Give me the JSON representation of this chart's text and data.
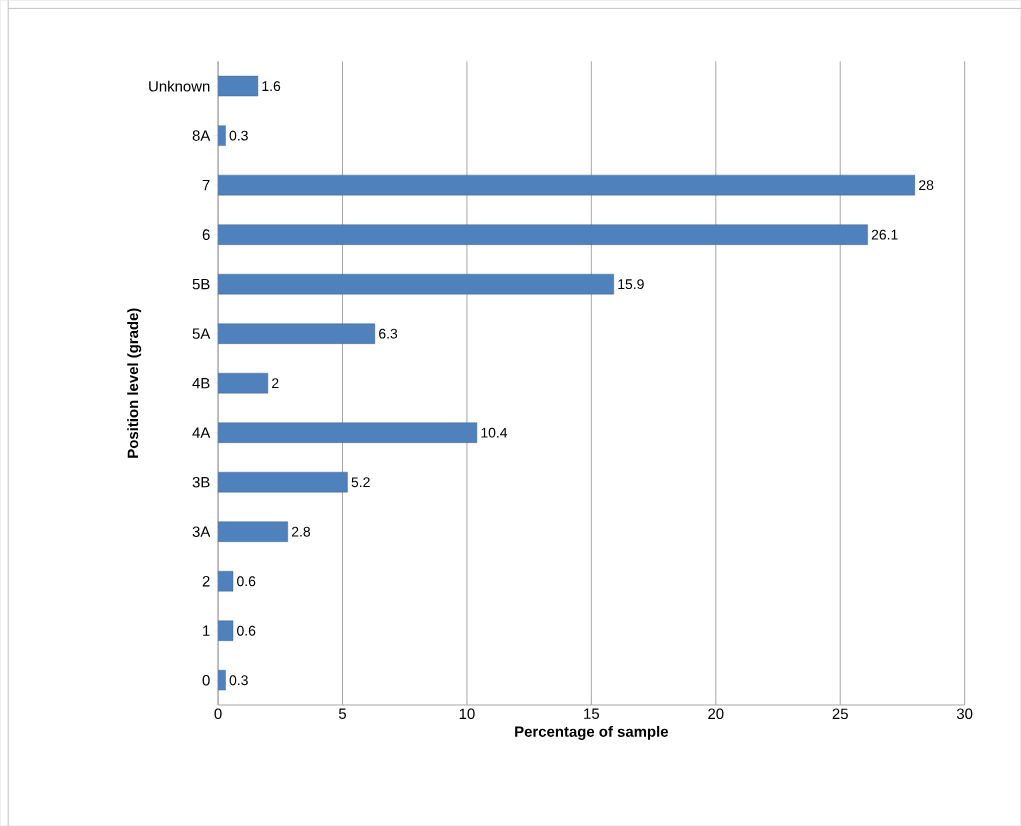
{
  "chart_data": {
    "type": "bar",
    "orientation": "horizontal",
    "xlabel": "Percentage of sample",
    "ylabel": "Position level (grade)",
    "categories": [
      "Unknown",
      "8A",
      "7",
      "6",
      "5B",
      "5A",
      "4B",
      "4A",
      "3B",
      "3A",
      "2",
      "1",
      "0"
    ],
    "values": [
      1.6,
      0.3,
      28,
      26.1,
      15.9,
      6.3,
      2,
      10.4,
      5.2,
      2.8,
      0.6,
      0.6,
      0.3
    ],
    "color": "#4f81bd",
    "data_labels": true,
    "xlim": [
      0,
      30
    ],
    "xticks": [
      0,
      5,
      10,
      15,
      20,
      25,
      30
    ],
    "grid": "x"
  }
}
